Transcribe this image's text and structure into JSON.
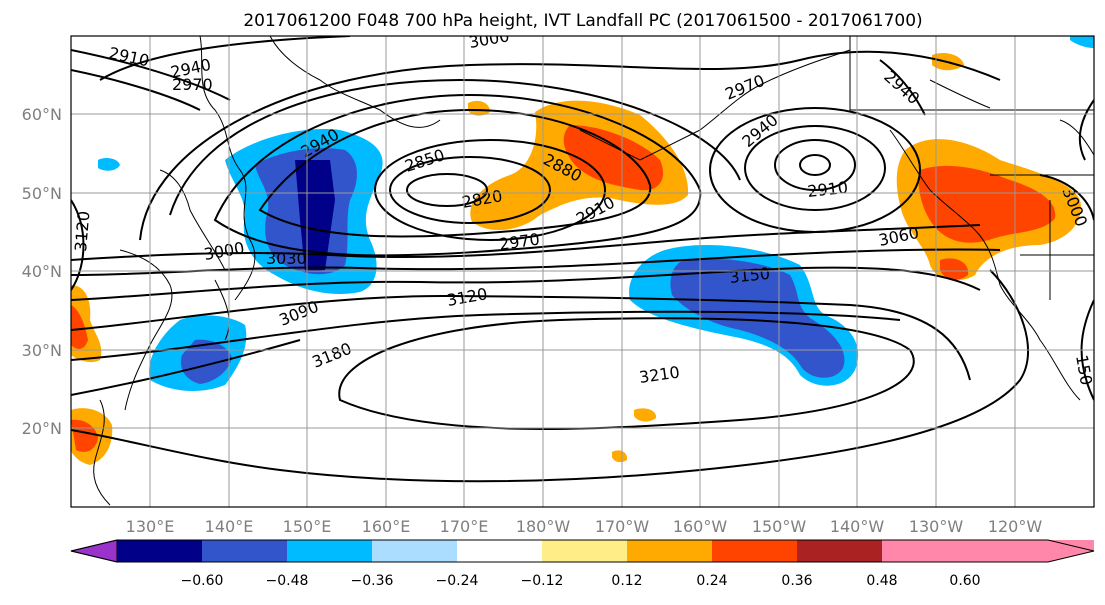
{
  "title": "2017061200 F048 700 hPa height, IVT Landfall PC (2017061500 - 2017061700)",
  "map": {
    "lon_labels": [
      "130°E",
      "140°E",
      "150°E",
      "160°E",
      "170°E",
      "180°W",
      "170°W",
      "160°W",
      "150°W",
      "140°W",
      "130°W",
      "120°W"
    ],
    "lat_labels": [
      "20°N",
      "30°N",
      "40°N",
      "50°N",
      "60°N"
    ],
    "contour_labels": [
      {
        "text": "2910"
      },
      {
        "text": "2940"
      },
      {
        "text": "2970"
      },
      {
        "text": "3000"
      },
      {
        "text": "2940"
      },
      {
        "text": "2850"
      },
      {
        "text": "2880"
      },
      {
        "text": "2820"
      },
      {
        "text": "2910"
      },
      {
        "text": "2970"
      },
      {
        "text": "3000"
      },
      {
        "text": "3030"
      },
      {
        "text": "3120"
      },
      {
        "text": "3090"
      },
      {
        "text": "3180"
      },
      {
        "text": "3210"
      },
      {
        "text": "3150"
      },
      {
        "text": "2970"
      },
      {
        "text": "2940"
      },
      {
        "text": "2910"
      },
      {
        "text": "2940"
      },
      {
        "text": "3060"
      },
      {
        "text": "3000"
      },
      {
        "text": "3120"
      },
      {
        "text": "150"
      }
    ]
  },
  "colorbar": {
    "ticks": [
      "−0.60",
      "−0.48",
      "−0.36",
      "−0.24",
      "−0.12",
      "0.12",
      "0.24",
      "0.36",
      "0.48",
      "0.60"
    ],
    "colors": [
      "#9933cc",
      "#000088",
      "#3355cc",
      "#00bbff",
      "#aaddff",
      "#ffffff",
      "#ffee88",
      "#ffaa00",
      "#ff4400",
      "#aa2222",
      "#ff88aa"
    ]
  }
}
